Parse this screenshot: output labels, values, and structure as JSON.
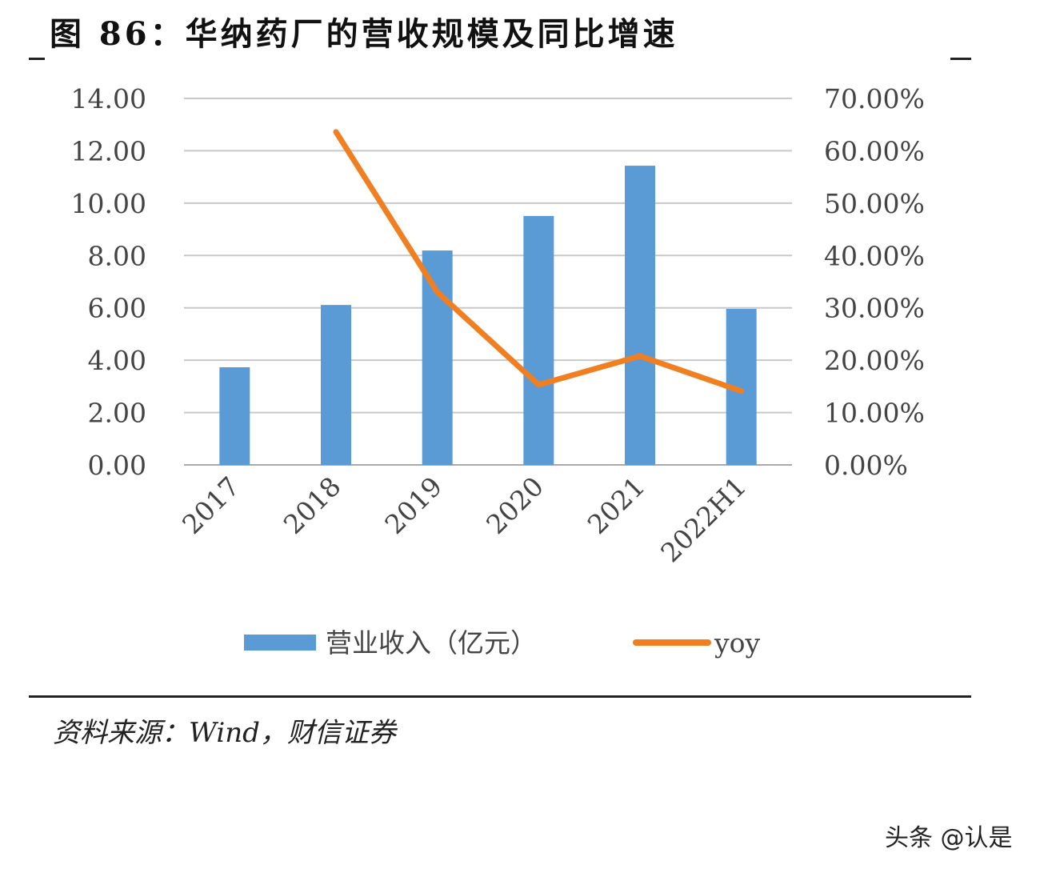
{
  "title": "图 86：华纳药厂的营收规模及同比增速",
  "source": "资料来源：Wind，财信证券",
  "watermark": "头条 @认是",
  "colors": {
    "bar": "#5b9bd5",
    "line": "#f07f22",
    "grid": "#c8c8c8"
  },
  "chart_data": {
    "type": "bar+line",
    "categories": [
      "2017",
      "2018",
      "2019",
      "2020",
      "2021",
      "2022H1"
    ],
    "series": [
      {
        "name": "营业收入（亿元）",
        "type": "bar",
        "axis": "left",
        "values": [
          3.73,
          6.11,
          8.19,
          9.51,
          11.43,
          5.96
        ]
      },
      {
        "name": "yoy",
        "type": "line",
        "axis": "right",
        "values": [
          null,
          63.6,
          33.0,
          15.3,
          20.8,
          14.1
        ]
      }
    ],
    "left_axis": {
      "ylim": [
        0,
        14
      ],
      "ticks": [
        "0.00",
        "2.00",
        "4.00",
        "6.00",
        "8.00",
        "10.00",
        "12.00",
        "14.00"
      ]
    },
    "right_axis": {
      "ylim": [
        0,
        70
      ],
      "ticks": [
        "0.00%",
        "10.00%",
        "20.00%",
        "30.00%",
        "40.00%",
        "50.00%",
        "60.00%",
        "70.00%"
      ]
    },
    "grid": true,
    "legend": "bottom"
  }
}
